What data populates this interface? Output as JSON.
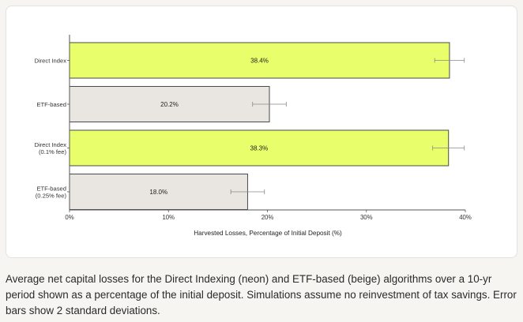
{
  "chart_data": {
    "type": "bar",
    "orientation": "horizontal",
    "categories": [
      [
        "Direct Index"
      ],
      [
        "ETF-based"
      ],
      [
        "Direct Index",
        "(0.1% fee)"
      ],
      [
        "ETF-based",
        "(0.25% fee)"
      ]
    ],
    "values": [
      38.4,
      20.2,
      38.3,
      18.0
    ],
    "value_labels": [
      "38.4%",
      "20.2%",
      "38.3%",
      "18.0%"
    ],
    "error_bars": [
      1.5,
      1.7,
      1.6,
      1.7
    ],
    "bar_colors": [
      "#e8ff6b",
      "#e9e6e1",
      "#e8ff6b",
      "#e9e6e1"
    ],
    "xlabel": "Harvested Losses, Percentage of Initial Deposit (%)",
    "ylabel": "",
    "xlim": [
      0,
      40
    ],
    "xticks": [
      0,
      10,
      20,
      30,
      40
    ],
    "xtick_labels": [
      "0%",
      "10%",
      "20%",
      "30%",
      "40%"
    ],
    "grid": false,
    "legend": "none"
  },
  "caption": "Average net capital losses for the Direct Indexing (neon) and ETF-based (beige) algorithms over a 10-yr period shown as a percentage of the initial deposit. Simulations assume no reinvestment of tax savings. Error bars show 2 standard deviations.",
  "colors": {
    "neon": "#e8ff6b",
    "beige": "#e9e6e1",
    "bar_stroke": "#4a4a4a",
    "axis": "#555555",
    "background": "#f6f5f1"
  }
}
